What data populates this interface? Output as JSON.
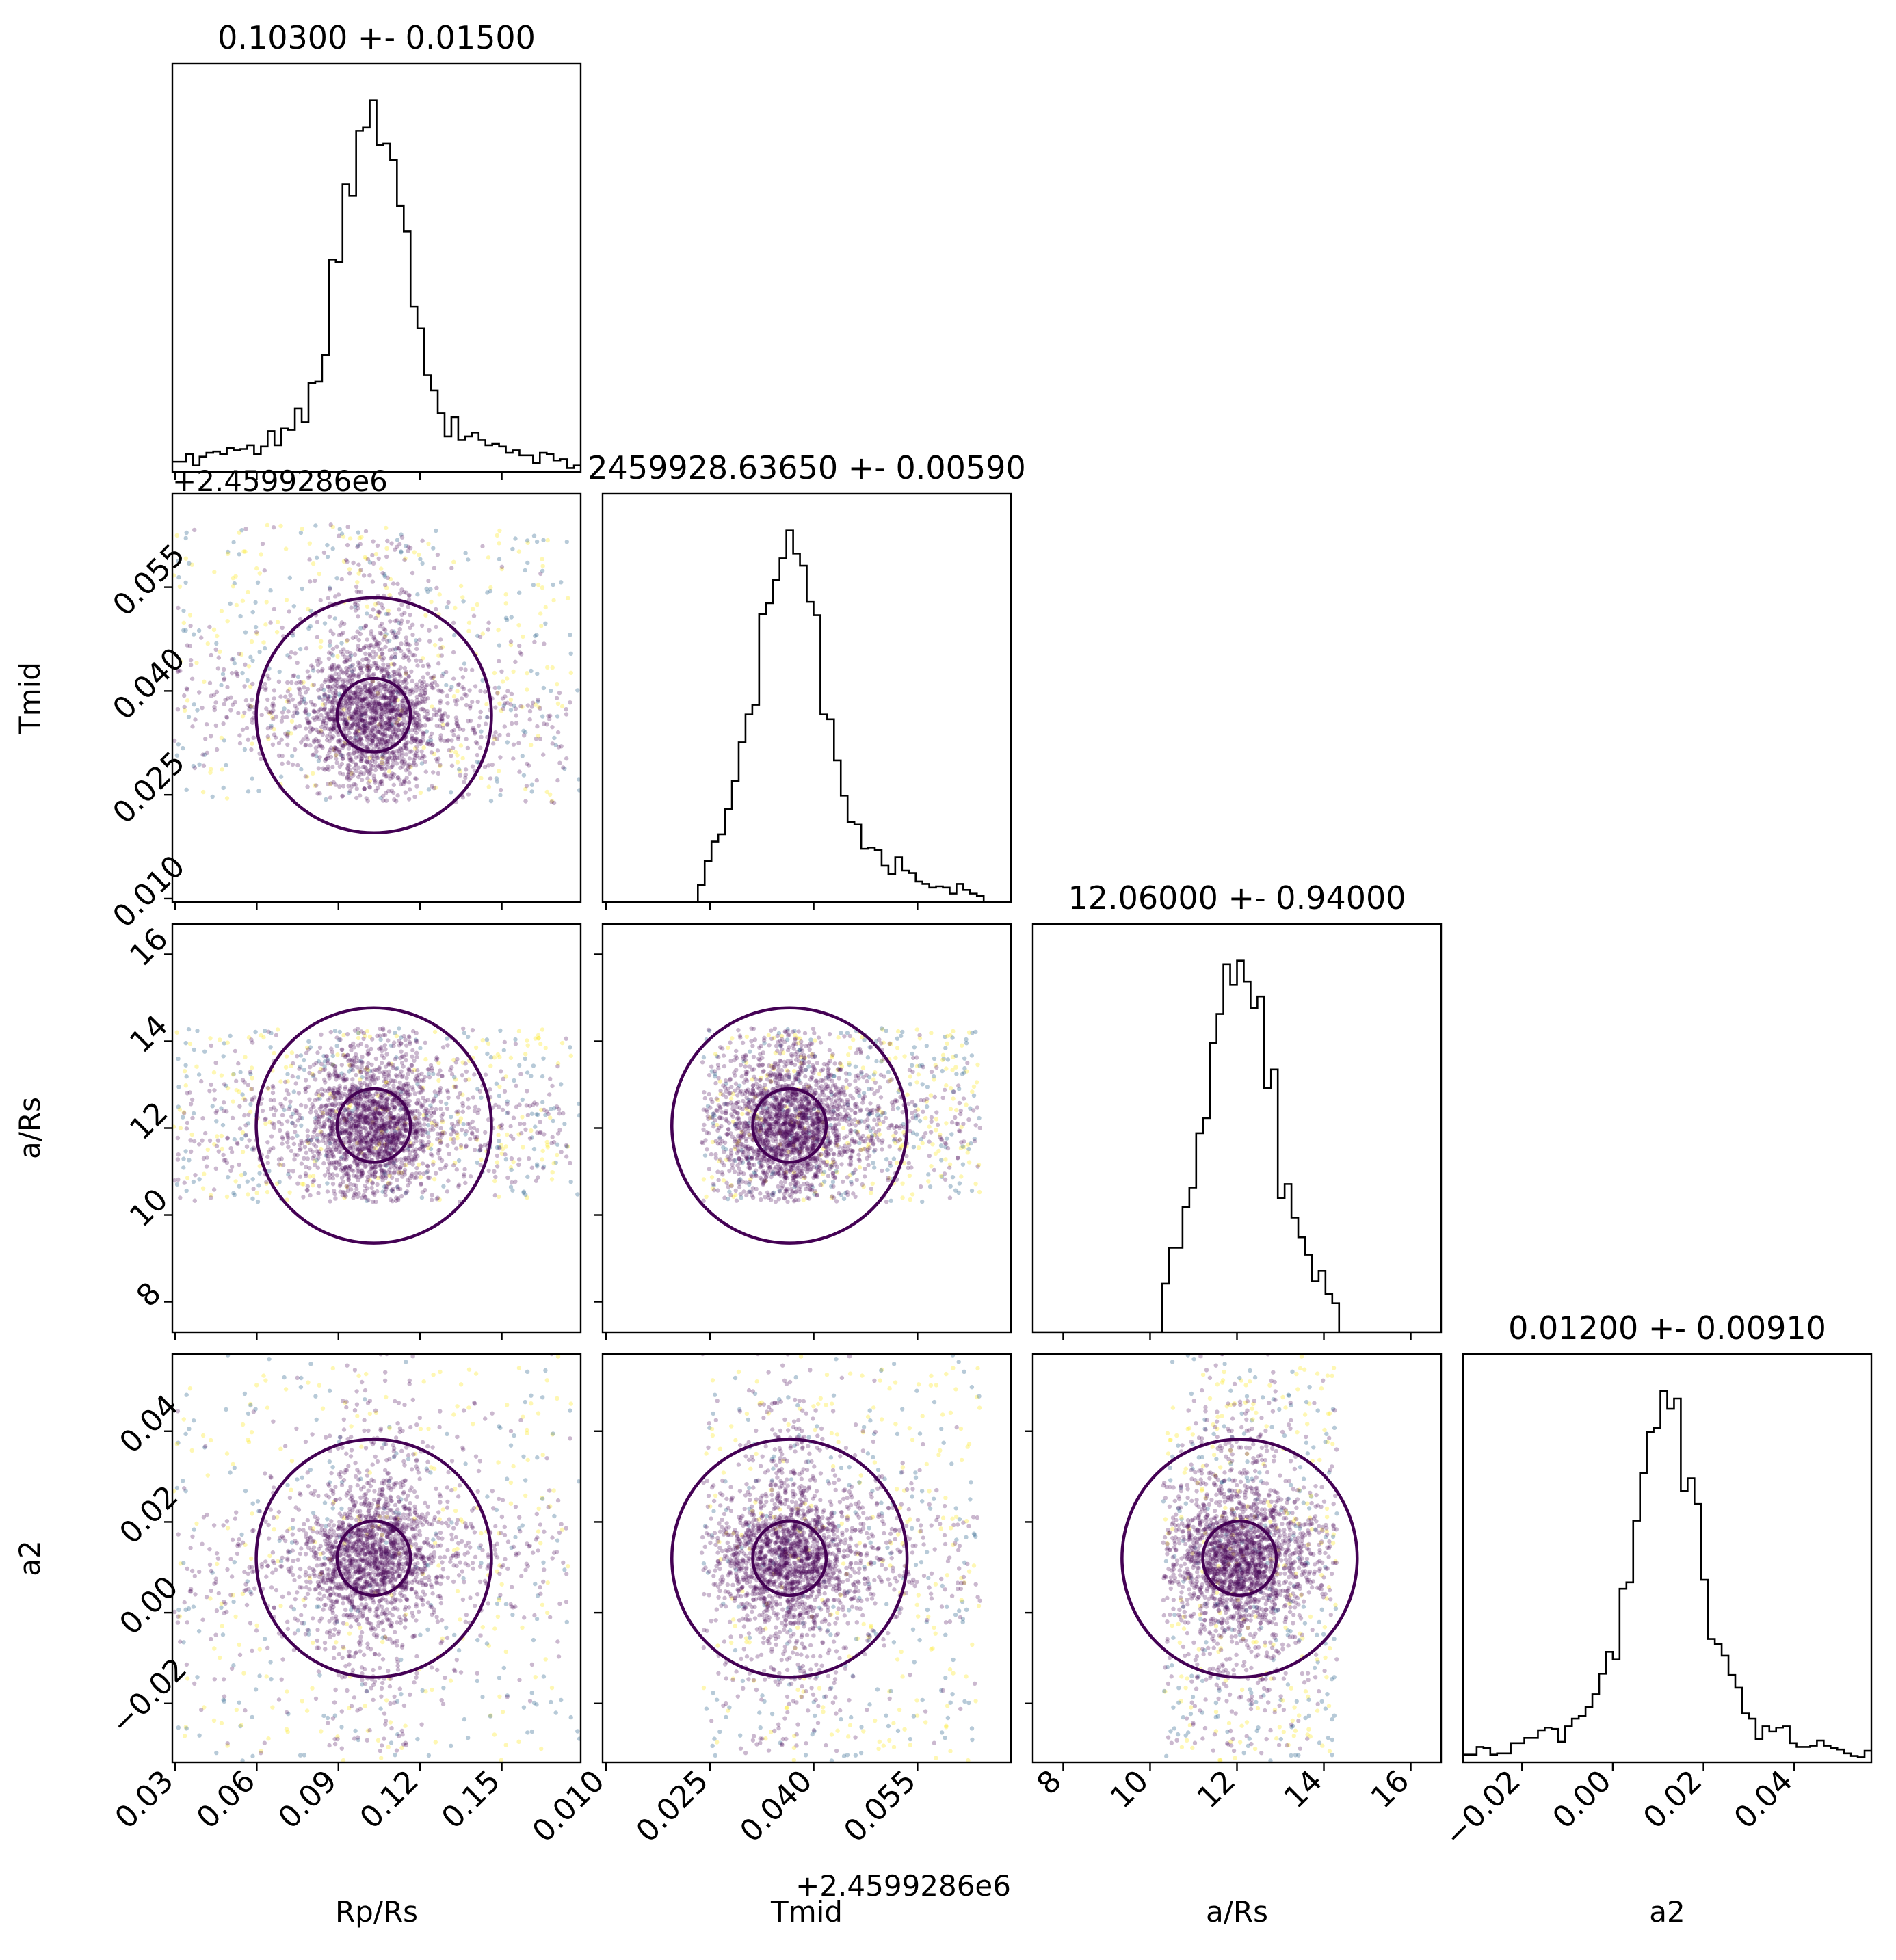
{
  "chart_data": {
    "type": "corner",
    "title": "",
    "parameters": [
      {
        "key": "rprs",
        "axis_label": "Rp/Rs",
        "summary_title": "0.10300 +- 0.01500",
        "median": 0.103,
        "sigma": 0.015,
        "range": [
          0.029,
          0.179
        ],
        "ticks": [
          0.03,
          0.06,
          0.09,
          0.12,
          0.15
        ],
        "tick_labels": [
          "0.03",
          "0.06",
          "0.09",
          "0.12",
          "0.15"
        ]
      },
      {
        "key": "tmid",
        "axis_label": "Tmid",
        "summary_title": "2459928.63650 +- 0.00590",
        "median": 2459928.6365,
        "sigma": 0.0059,
        "range": [
          2459928.6095,
          2459928.6685
        ],
        "offset_text": "+2.4599286e6",
        "ticks": [
          2459928.61,
          2459928.625,
          2459928.64,
          2459928.655
        ],
        "tick_labels": [
          "0.010",
          "0.025",
          "0.040",
          "0.055"
        ]
      },
      {
        "key": "ars",
        "axis_label": "a/Rs",
        "summary_title": "12.06000 +- 0.94000",
        "median": 12.06,
        "sigma": 0.94,
        "range": [
          7.3,
          16.7
        ],
        "ticks": [
          8,
          10,
          12,
          14,
          16
        ],
        "tick_labels": [
          "8",
          "10",
          "12",
          "14",
          "16"
        ]
      },
      {
        "key": "a2",
        "axis_label": "a2",
        "summary_title": "0.01200 +- 0.00910",
        "median": 0.012,
        "sigma": 0.0091,
        "range": [
          -0.033,
          0.057
        ],
        "ticks": [
          -0.02,
          0.0,
          0.02,
          0.04
        ],
        "tick_labels": [
          "−0.02",
          "0.00",
          "0.02",
          "0.04"
        ]
      }
    ],
    "prior_bounds": {
      "tmid": [
        2459928.624,
        2459928.664
      ],
      "ars": [
        10.3,
        14.3
      ]
    },
    "diagonal": "1D marginal histograms (step)",
    "off_diagonal": "2D posterior samples (scatter, viridis-colored) with contour levels",
    "colors": {
      "contour": "#440154",
      "scatter_main": "#440154",
      "histogram": "#000000",
      "scatter_extra": [
        "#fde725",
        "#35b779",
        "#31688e",
        "#8fd744"
      ]
    }
  }
}
